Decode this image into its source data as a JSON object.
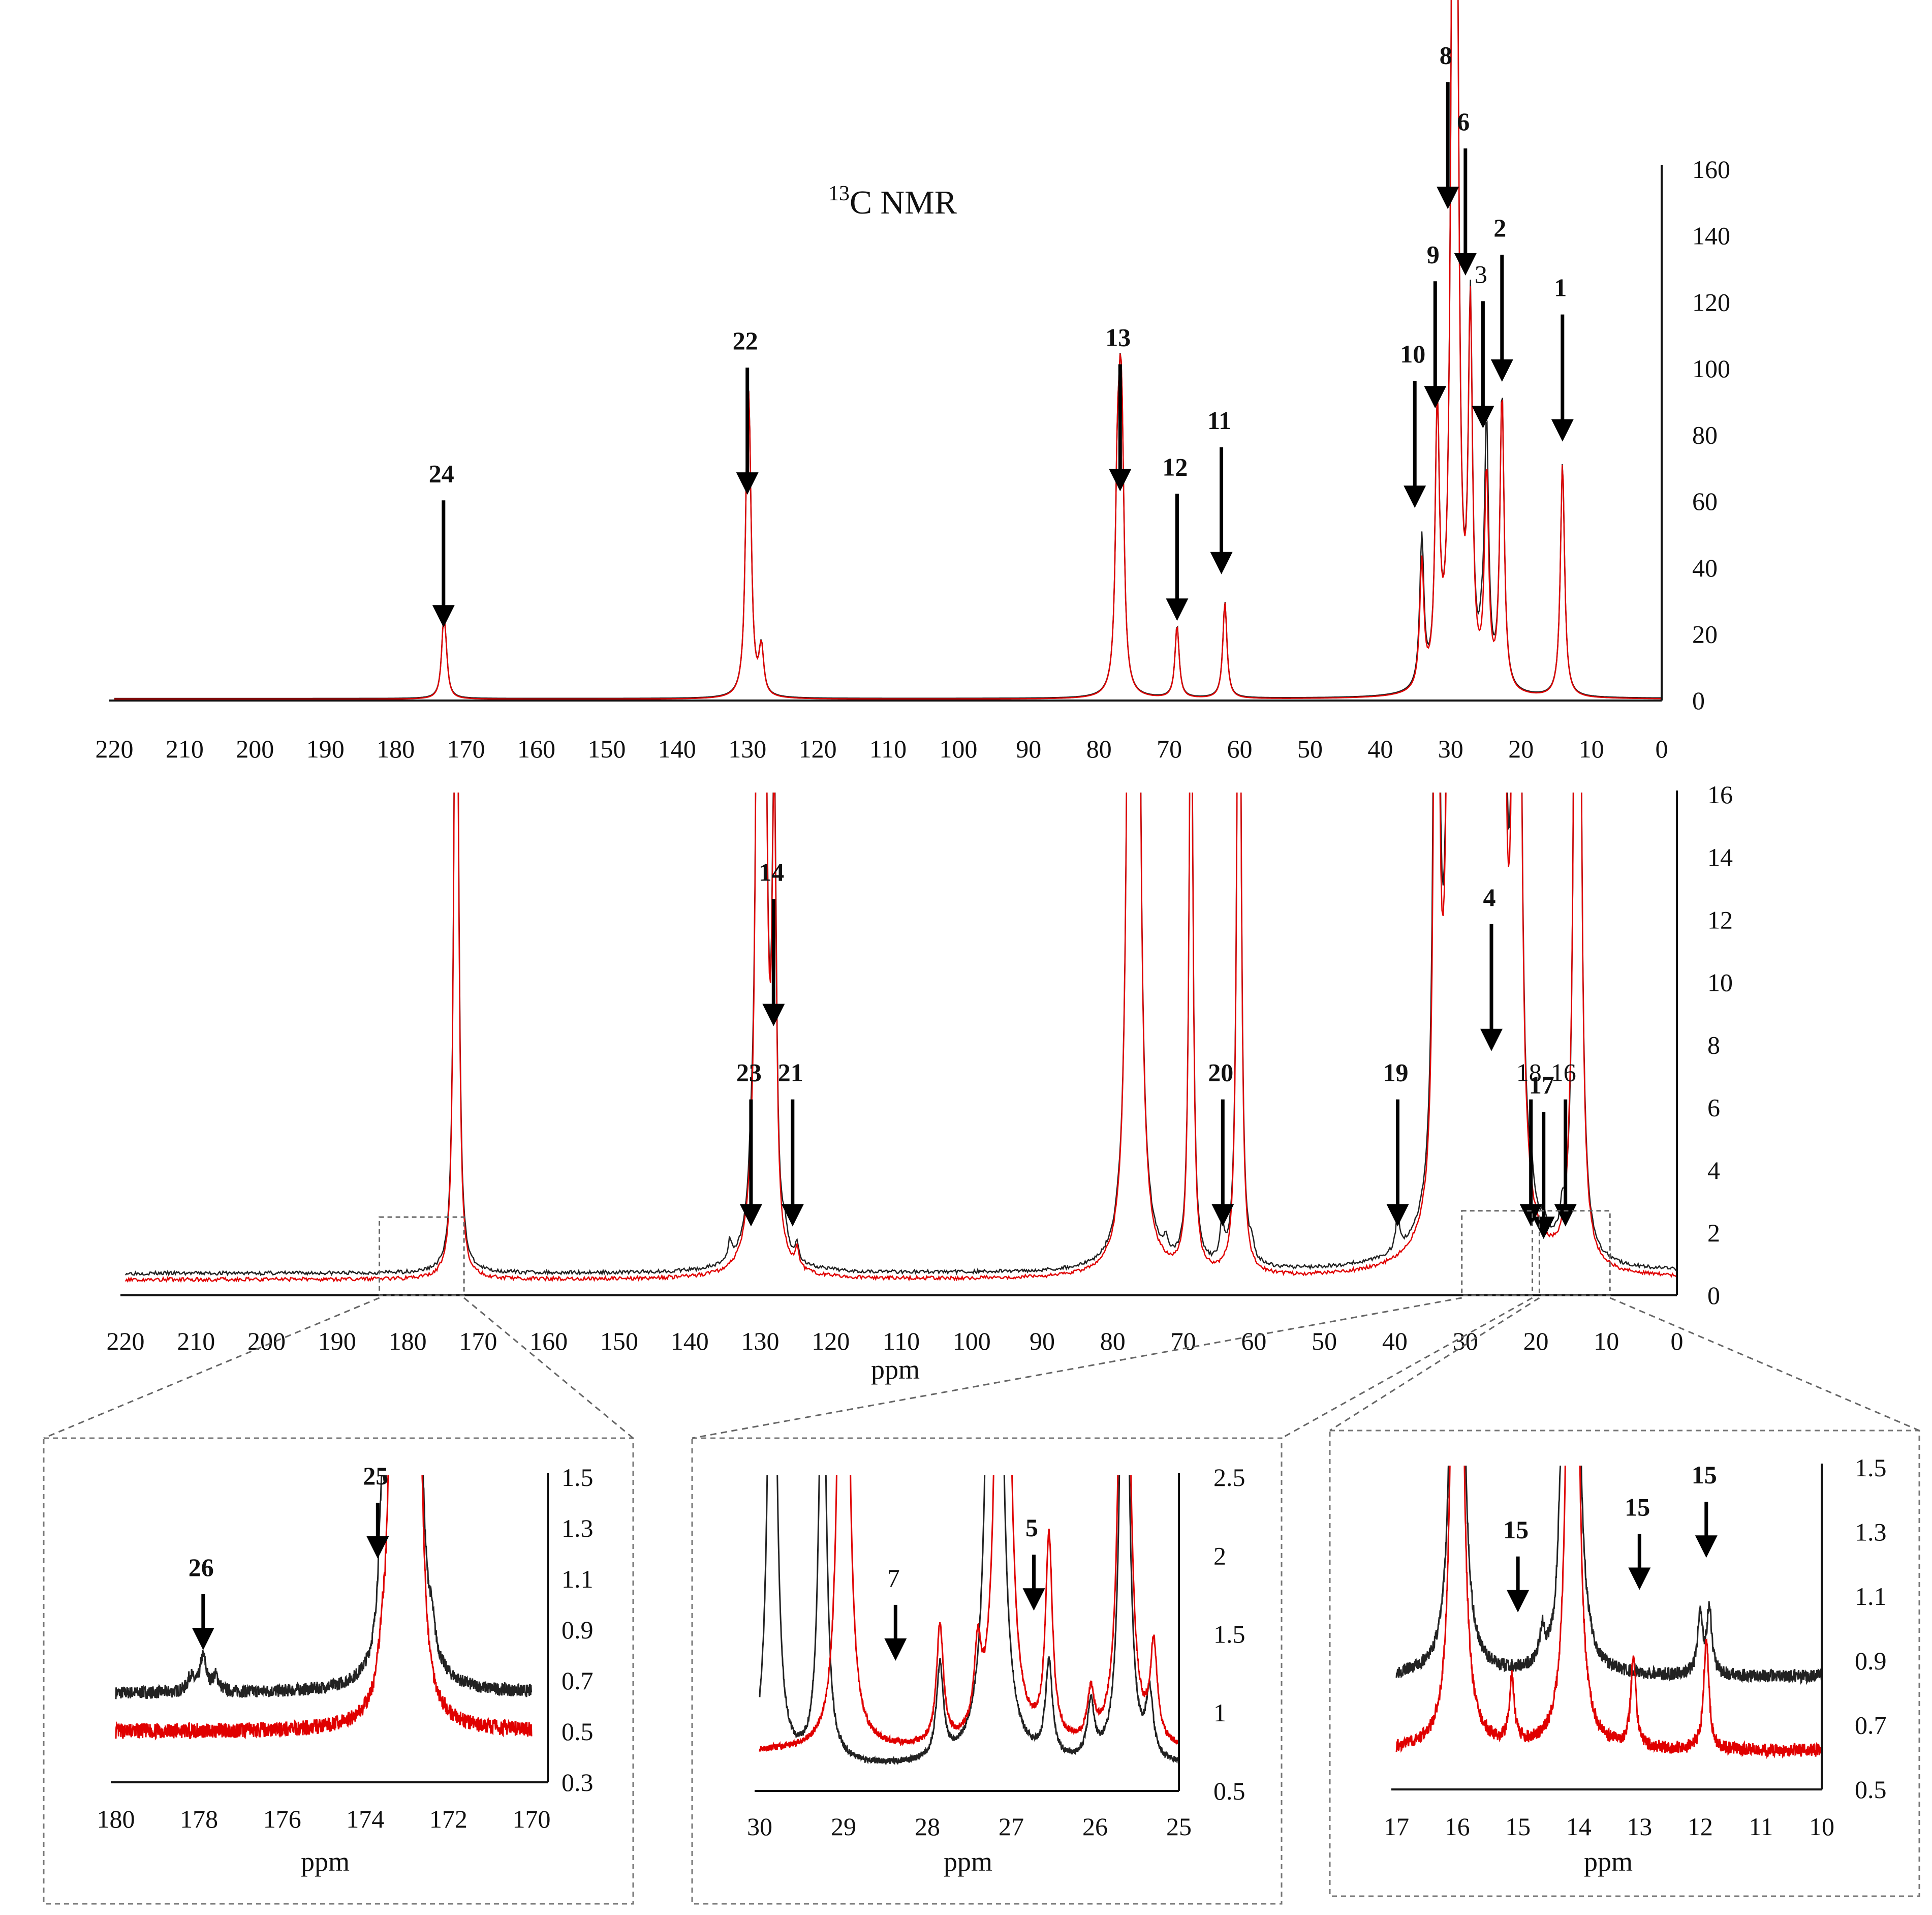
{
  "chart_data": [
    {
      "id": "top",
      "type": "line",
      "title": "13C NMR",
      "title_sup": "13",
      "title_main": "C NMR",
      "xlabel": "",
      "ylabel": "",
      "xlim": [
        220,
        0
      ],
      "ylim": [
        0,
        160
      ],
      "x_ticks": [
        220,
        210,
        200,
        190,
        180,
        170,
        160,
        150,
        140,
        130,
        120,
        110,
        100,
        90,
        80,
        70,
        60,
        50,
        40,
        30,
        20,
        10,
        0
      ],
      "y_ticks": [
        0,
        20,
        40,
        60,
        80,
        100,
        120,
        140,
        160
      ],
      "series": [
        {
          "name": "black",
          "color": "#222222",
          "baseline": 0.6,
          "peaks": [
            [
              173.2,
              19
            ],
            [
              172.9,
              9
            ],
            [
              130.0,
              56
            ],
            [
              129.7,
              54
            ],
            [
              128.1,
              8
            ],
            [
              127.9,
              7
            ],
            [
              77.4,
              52
            ],
            [
              77.0,
              52
            ],
            [
              76.7,
              51
            ],
            [
              68.9,
              22
            ],
            [
              62.1,
              29
            ],
            [
              34.1,
              45
            ],
            [
              31.9,
              82
            ],
            [
              29.7,
              146
            ],
            [
              29.5,
              130
            ],
            [
              29.3,
              116
            ],
            [
              29.1,
              100
            ],
            [
              27.2,
              111
            ],
            [
              25.6,
              8
            ],
            [
              24.9,
              77
            ],
            [
              22.7,
              90
            ],
            [
              14.1,
              71
            ]
          ]
        },
        {
          "name": "red",
          "color": "#e00000",
          "baseline": 0.4,
          "peaks": [
            [
              173.2,
              19
            ],
            [
              172.9,
              9
            ],
            [
              130.0,
              56
            ],
            [
              129.7,
              54
            ],
            [
              128.1,
              8
            ],
            [
              127.9,
              7
            ],
            [
              77.4,
              52
            ],
            [
              77.0,
              52
            ],
            [
              76.7,
              51
            ],
            [
              68.9,
              22
            ],
            [
              62.1,
              29
            ],
            [
              34.1,
              38
            ],
            [
              31.9,
              82
            ],
            [
              29.7,
              145
            ],
            [
              29.5,
              132
            ],
            [
              29.3,
              114
            ],
            [
              29.1,
              98
            ],
            [
              27.2,
              110
            ],
            [
              24.9,
              64
            ],
            [
              22.7,
              90
            ],
            [
              14.1,
              71
            ]
          ]
        }
      ],
      "annotations": [
        {
          "text": "24",
          "x": 173.2,
          "y": 22,
          "bold": true
        },
        {
          "text": "22",
          "x": 130.0,
          "y": 62,
          "bold": true
        },
        {
          "text": "13",
          "x": 77.0,
          "y": 63,
          "bold": true
        },
        {
          "text": "12",
          "x": 68.9,
          "y": 24,
          "bold": true
        },
        {
          "text": "11",
          "x": 62.6,
          "y": 38,
          "bold": true
        },
        {
          "text": "10",
          "x": 35.1,
          "y": 58,
          "bold": true
        },
        {
          "text": "9",
          "x": 32.2,
          "y": 88,
          "bold": true
        },
        {
          "text": "8",
          "x": 30.4,
          "y": 148,
          "bold": true
        },
        {
          "text": "6",
          "x": 27.9,
          "y": 128,
          "bold": true
        },
        {
          "text": "3",
          "x": 25.4,
          "y": 82,
          "bold": false
        },
        {
          "text": "2",
          "x": 22.7,
          "y": 96,
          "bold": true
        },
        {
          "text": "1",
          "x": 14.1,
          "y": 78,
          "bold": true
        }
      ]
    },
    {
      "id": "mid",
      "type": "line",
      "title": "",
      "xlabel": "ppm",
      "ylabel": "",
      "xlim": [
        220,
        0
      ],
      "ylim": [
        0,
        16
      ],
      "x_ticks": [
        220,
        210,
        200,
        190,
        180,
        170,
        160,
        150,
        140,
        130,
        120,
        110,
        100,
        90,
        80,
        70,
        60,
        50,
        40,
        30,
        20,
        10,
        0
      ],
      "y_ticks": [
        0,
        2,
        4,
        6,
        8,
        10,
        12,
        14,
        16
      ],
      "series": [
        {
          "name": "black",
          "color": "#222222",
          "baseline": 0.7,
          "peaks": [
            [
              173.2,
              19
            ],
            [
              172.9,
              9.5
            ],
            [
              134.3,
              0.6
            ],
            [
              131.3,
              0.7
            ],
            [
              130.0,
              56
            ],
            [
              129.7,
              54
            ],
            [
              128.1,
              8.1
            ],
            [
              127.9,
              7.3
            ],
            [
              126.5,
              0.6
            ],
            [
              124.8,
              0.5
            ],
            [
              77.4,
              52
            ],
            [
              77.0,
              52
            ],
            [
              76.7,
              51
            ],
            [
              72.5,
              0.5
            ],
            [
              68.9,
              22
            ],
            [
              64.5,
              1.2
            ],
            [
              62.1,
              29
            ],
            [
              60.3,
              0.5
            ],
            [
              39.6,
              1.2
            ],
            [
              34.1,
              45
            ],
            [
              31.9,
              82
            ],
            [
              30.7,
              8.2
            ],
            [
              29.7,
              146
            ],
            [
              29.5,
              130
            ],
            [
              29.3,
              116
            ],
            [
              29.1,
              100
            ],
            [
              27.8,
              0.9
            ],
            [
              27.2,
              111
            ],
            [
              26.6,
              0.8
            ],
            [
              24.9,
              77
            ],
            [
              22.7,
              90
            ],
            [
              20.6,
              0.8
            ],
            [
              18.9,
              0.6
            ],
            [
              16.3,
              0.7
            ],
            [
              14.1,
              71
            ]
          ]
        },
        {
          "name": "red",
          "color": "#e00000",
          "baseline": 0.5,
          "peaks": [
            [
              173.2,
              19
            ],
            [
              172.9,
              9
            ],
            [
              130.0,
              56
            ],
            [
              129.7,
              54
            ],
            [
              128.1,
              8
            ],
            [
              127.9,
              7
            ],
            [
              124.8,
              0.6
            ],
            [
              77.4,
              52
            ],
            [
              77.0,
              52
            ],
            [
              76.7,
              51
            ],
            [
              68.9,
              22
            ],
            [
              62.1,
              29
            ],
            [
              34.1,
              38
            ],
            [
              31.9,
              82
            ],
            [
              29.7,
              145
            ],
            [
              29.5,
              132
            ],
            [
              29.3,
              114
            ],
            [
              29.1,
              98
            ],
            [
              27.8,
              0.9
            ],
            [
              27.2,
              110
            ],
            [
              26.0,
              0.9
            ],
            [
              24.9,
              64
            ],
            [
              22.7,
              90
            ],
            [
              15.2,
              0.7
            ],
            [
              14.1,
              71
            ]
          ]
        }
      ],
      "annotations": [
        {
          "text": "23",
          "x": 131.3,
          "y": 2.2,
          "bold": true
        },
        {
          "text": "14",
          "x": 128.1,
          "y": 8.6,
          "bold": true
        },
        {
          "text": "21",
          "x": 125.4,
          "y": 2.2,
          "bold": true
        },
        {
          "text": "20",
          "x": 64.4,
          "y": 2.2,
          "bold": true
        },
        {
          "text": "19",
          "x": 39.6,
          "y": 2.2,
          "bold": true
        },
        {
          "text": "4",
          "x": 26.3,
          "y": 7.8,
          "bold": true
        },
        {
          "text": "17",
          "x": 18.9,
          "y": 1.8,
          "bold": true
        },
        {
          "text": "18",
          "x": 20.7,
          "y": 2.2,
          "bold": false
        },
        {
          "text": "16",
          "x": 15.8,
          "y": 2.2,
          "bold": false
        }
      ],
      "zoom_boxes": [
        {
          "x_from": 184,
          "x_to": 172,
          "y_from": 0,
          "y_to": 2.5
        },
        {
          "x_from": 30.5,
          "x_to": 20.5,
          "y_from": 0,
          "y_to": 2.7
        },
        {
          "x_from": 19.5,
          "x_to": 9.5,
          "y_from": 0,
          "y_to": 2.7
        }
      ]
    },
    {
      "id": "inset1",
      "type": "line",
      "title": "",
      "xlabel": "ppm",
      "ylabel": "",
      "xlim": [
        180,
        170
      ],
      "ylim": [
        0.3,
        1.5
      ],
      "x_ticks": [
        180,
        178,
        176,
        174,
        172,
        170
      ],
      "y_ticks": [
        0.3,
        0.5,
        0.7,
        0.9,
        1.1,
        1.3,
        1.5
      ],
      "series": [
        {
          "name": "black",
          "color": "#222222",
          "baseline": 0.65,
          "noise": 0.025,
          "seed": 7,
          "peaks": [
            [
              178.2,
              0.06
            ],
            [
              177.9,
              0.14
            ],
            [
              177.6,
              0.06
            ],
            [
              173.6,
              0.5
            ],
            [
              173.4,
              0.2
            ],
            [
              173.2,
              6
            ],
            [
              172.8,
              4
            ],
            [
              172.4,
              0.1
            ]
          ],
          "width": 0.09
        },
        {
          "name": "red",
          "color": "#e00000",
          "baseline": 0.5,
          "noise": 0.03,
          "seed": 13,
          "peaks": [
            [
              173.6,
              0.12
            ],
            [
              173.4,
              0.25
            ],
            [
              173.2,
              6
            ],
            [
              172.8,
              4
            ]
          ],
          "width": 0.09
        }
      ],
      "annotations": [
        {
          "text": "26",
          "x": 177.9,
          "y": 0.82,
          "bold": true
        },
        {
          "text": "25",
          "x": 173.7,
          "y": 1.18,
          "bold": true
        }
      ]
    },
    {
      "id": "inset2",
      "type": "line",
      "title": "",
      "xlabel": "ppm",
      "ylabel": "",
      "xlim": [
        30,
        25
      ],
      "ylim": [
        0.5,
        2.5
      ],
      "x_ticks": [
        30,
        29,
        28,
        27,
        26,
        25
      ],
      "y_ticks": [
        0.5,
        1,
        1.5,
        2,
        2.5
      ],
      "series": [
        {
          "name": "black",
          "color": "#222222",
          "baseline": 0.65,
          "noise": 0.02,
          "seed": 5,
          "peaks": [
            [
              29.85,
              4.5
            ],
            [
              29.25,
              3.0
            ],
            [
              27.85,
              0.6
            ],
            [
              27.2,
              12
            ],
            [
              26.55,
              0.6
            ],
            [
              26.05,
              0.35
            ],
            [
              25.65,
              4.5
            ],
            [
              25.35,
              0.4
            ]
          ],
          "width": 0.05
        },
        {
          "name": "red",
          "color": "#e00000",
          "baseline": 0.75,
          "noise": 0.02,
          "seed": 11,
          "peaks": [
            [
              29.0,
              6.5
            ],
            [
              27.85,
              0.75
            ],
            [
              27.4,
              0.5
            ],
            [
              27.1,
              10
            ],
            [
              26.55,
              1.3
            ],
            [
              26.05,
              0.3
            ],
            [
              25.65,
              6
            ],
            [
              25.3,
              0.6
            ]
          ],
          "width": 0.05
        }
      ],
      "annotations": [
        {
          "text": "7",
          "x": 28.38,
          "y": 1.33,
          "bold": false
        },
        {
          "text": "5",
          "x": 26.73,
          "y": 1.65,
          "bold": true
        }
      ]
    },
    {
      "id": "inset3",
      "type": "line",
      "title": "",
      "xlabel": "ppm",
      "ylabel": "",
      "xlim": [
        17,
        10
      ],
      "ylim": [
        0.5,
        1.5
      ],
      "x_ticks": [
        17,
        16,
        15,
        14,
        13,
        12,
        11,
        10
      ],
      "y_ticks": [
        0.5,
        0.7,
        0.9,
        1.1,
        1.3,
        1.5
      ],
      "series": [
        {
          "name": "black",
          "color": "#222222",
          "baseline": 0.85,
          "noise": 0.02,
          "seed": 3,
          "peaks": [
            [
              16.0,
              6
            ],
            [
              14.6,
              0.1
            ],
            [
              14.1,
              6
            ],
            [
              14.3,
              0.3
            ],
            [
              12.0,
              0.18
            ],
            [
              11.85,
              0.2
            ]
          ],
          "width": 0.05
        },
        {
          "name": "red",
          "color": "#e00000",
          "baseline": 0.62,
          "noise": 0.02,
          "seed": 9,
          "peaks": [
            [
              16.0,
              6
            ],
            [
              15.1,
              0.2
            ],
            [
              14.1,
              6
            ],
            [
              13.1,
              0.28
            ],
            [
              11.9,
              0.35
            ]
          ],
          "width": 0.05
        }
      ],
      "annotations": [
        {
          "text": "15",
          "x": 15.0,
          "y": 1.05,
          "bold": true
        },
        {
          "text": "15",
          "x": 13.0,
          "y": 1.12,
          "bold": true
        },
        {
          "text": "15",
          "x": 11.9,
          "y": 1.22,
          "bold": true
        }
      ]
    }
  ]
}
